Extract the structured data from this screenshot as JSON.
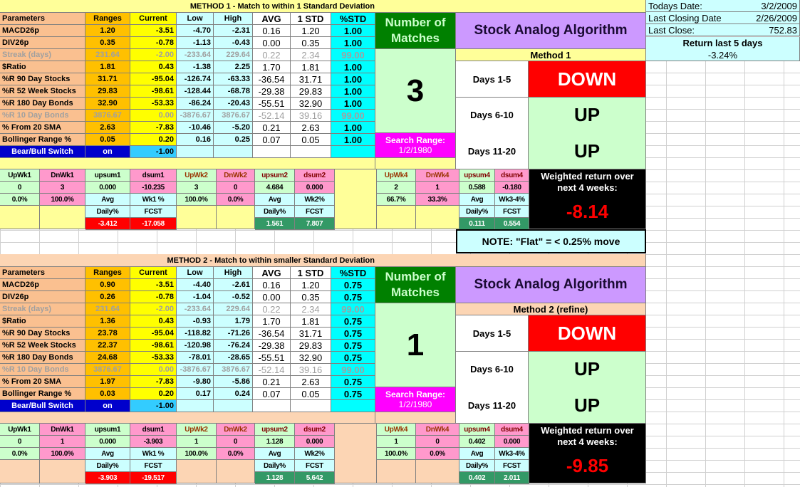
{
  "colors": {
    "params": "#fac090",
    "ranges": "#ffc000",
    "current": "#ffff00",
    "lowhigh": "#ccffff",
    "pctstd": "#00ffff",
    "matches_hdr": "#008000",
    "matches_val": "#ccffcc",
    "search": "#ff00ff",
    "algo": "#cc99ff",
    "down": "#ff0000",
    "up": "#ccffcc",
    "up_cell": "#ccffcc",
    "dn_cell": "#ff99cc",
    "fcst_neg": "#ff0000",
    "fcst_pos": "#339966",
    "switch": "#0000cc"
  },
  "info": {
    "todays_label": "Todays Date:",
    "todays_value": "3/2/2009",
    "closing_label": "Last Closing Date:",
    "closing_value": "2/26/2009",
    "close_label": "Last Close:",
    "close_value": "752.83",
    "return_label": "Return last 5 days",
    "return_value": "-3.24%"
  },
  "note": "NOTE: \"Flat\" = < 0.25% move",
  "headers": [
    "Parameters",
    "Ranges",
    "Current",
    "Low",
    "High",
    "AVG",
    "1 STD",
    "%STD"
  ],
  "methods": [
    {
      "title": "METHOD 1 - Match to within 1 Standard Deviation",
      "bg": "#ffff99",
      "rows": [
        {
          "name": "MACD26p",
          "range": "1.20",
          "current": "-3.51",
          "low": "-4.70",
          "high": "-2.31",
          "avg": "0.16",
          "std": "1.20",
          "pct": "1.00",
          "dim": false
        },
        {
          "name": "DIV26p",
          "range": "0.35",
          "current": "-0.78",
          "low": "-1.13",
          "high": "-0.43",
          "avg": "0.00",
          "std": "0.35",
          "pct": "1.00",
          "dim": false
        },
        {
          "name": "Streak (days)",
          "range": "231.64",
          "current": "-2.00",
          "low": "-233.64",
          "high": "229.64",
          "avg": "0.22",
          "std": "2.34",
          "pct": "99.00",
          "dim": true
        },
        {
          "name": "$Ratio",
          "range": "1.81",
          "current": "0.43",
          "low": "-1.38",
          "high": "2.25",
          "avg": "1.70",
          "std": "1.81",
          "pct": "1.00",
          "dim": false
        },
        {
          "name": "%R 90 Day Stocks",
          "range": "31.71",
          "current": "-95.04",
          "low": "-126.74",
          "high": "-63.33",
          "avg": "-36.54",
          "std": "31.71",
          "pct": "1.00",
          "dim": false
        },
        {
          "name": "%R 52 Week Stocks",
          "range": "29.83",
          "current": "-98.61",
          "low": "-128.44",
          "high": "-68.78",
          "avg": "-29.38",
          "std": "29.83",
          "pct": "1.00",
          "dim": false
        },
        {
          "name": "%R 180 Day Bonds",
          "range": "32.90",
          "current": "-53.33",
          "low": "-86.24",
          "high": "-20.43",
          "avg": "-55.51",
          "std": "32.90",
          "pct": "1.00",
          "dim": false
        },
        {
          "name": "%R 10 Day Bonds",
          "range": "3876.67",
          "current": "0.00",
          "low": "-3876.67",
          "high": "3876.67",
          "avg": "-52.14",
          "std": "39.16",
          "pct": "99.00",
          "dim": true
        },
        {
          "name": "% From 20 SMA",
          "range": "2.63",
          "current": "-7.83",
          "low": "-10.46",
          "high": "-5.20",
          "avg": "0.21",
          "std": "2.63",
          "pct": "1.00",
          "dim": false
        },
        {
          "name": "Bollinger Range %",
          "range": "0.05",
          "current": "0.20",
          "low": "0.16",
          "high": "0.25",
          "avg": "0.07",
          "std": "0.05",
          "pct": "1.00",
          "dim": false
        }
      ],
      "switch": {
        "label": "Bear/Bull Switch",
        "range": "on",
        "current": "-1.00"
      },
      "matches": {
        "label": "Number of Matches",
        "value": "3",
        "search_label": "Search Range:",
        "search_date": "1/2/1980"
      },
      "algo_title": "Stock Analog Algorithm",
      "method_label": "Method 1",
      "forecast": [
        {
          "days": "Days 1-5",
          "dir": "DOWN"
        },
        {
          "days": "Days 6-10",
          "dir": "UP"
        },
        {
          "days": "Days 11-20",
          "dir": "UP"
        }
      ],
      "weeks": {
        "headers": [
          "UpWk1",
          "DnWk1",
          "upsum1",
          "dsum1",
          "UpWk2",
          "DnWk2",
          "upsum2",
          "dsum2",
          "UpWk4",
          "DnWk4",
          "upsum4",
          "dsum4"
        ],
        "values": [
          "0",
          "3",
          "0.000",
          "-10.235",
          "3",
          "0",
          "4.684",
          "0.000",
          "2",
          "1",
          "0.588",
          "-0.180"
        ],
        "pcts": [
          "0.0%",
          "100.0%",
          "100.0%",
          "0.0%",
          "66.7%",
          "33.3%"
        ],
        "avg_labels": [
          [
            "Avg",
            "Daily%"
          ],
          [
            "Wk1 %",
            "FCST"
          ],
          [
            "Avg",
            "Daily%"
          ],
          [
            "Wk2%",
            "FCST"
          ],
          [
            "Avg",
            "Daily%"
          ],
          [
            "Wk3-4%",
            "FCST"
          ]
        ],
        "fcst": [
          "-3.412",
          "-17.058",
          "1.561",
          "7.807",
          "0.111",
          "0.554"
        ]
      },
      "weighted": {
        "label": "Weighted return over next 4 weeks:",
        "value": "-8.14"
      }
    },
    {
      "title": "METHOD 2 - Match to within smaller Standard Deviation",
      "bg": "#fcd5b4",
      "rows": [
        {
          "name": "MACD26p",
          "range": "0.90",
          "current": "-3.51",
          "low": "-4.40",
          "high": "-2.61",
          "avg": "0.16",
          "std": "1.20",
          "pct": "0.75",
          "dim": false
        },
        {
          "name": "DIV26p",
          "range": "0.26",
          "current": "-0.78",
          "low": "-1.04",
          "high": "-0.52",
          "avg": "0.00",
          "std": "0.35",
          "pct": "0.75",
          "dim": false
        },
        {
          "name": "Streak (days)",
          "range": "231.64",
          "current": "-2.00",
          "low": "-233.64",
          "high": "229.64",
          "avg": "0.22",
          "std": "2.34",
          "pct": "99.00",
          "dim": true
        },
        {
          "name": "$Ratio",
          "range": "1.36",
          "current": "0.43",
          "low": "-0.93",
          "high": "1.79",
          "avg": "1.70",
          "std": "1.81",
          "pct": "0.75",
          "dim": false
        },
        {
          "name": "%R 90 Day Stocks",
          "range": "23.78",
          "current": "-95.04",
          "low": "-118.82",
          "high": "-71.26",
          "avg": "-36.54",
          "std": "31.71",
          "pct": "0.75",
          "dim": false
        },
        {
          "name": "%R 52 Week Stocks",
          "range": "22.37",
          "current": "-98.61",
          "low": "-120.98",
          "high": "-76.24",
          "avg": "-29.38",
          "std": "29.83",
          "pct": "0.75",
          "dim": false
        },
        {
          "name": "%R 180 Day Bonds",
          "range": "24.68",
          "current": "-53.33",
          "low": "-78.01",
          "high": "-28.65",
          "avg": "-55.51",
          "std": "32.90",
          "pct": "0.75",
          "dim": false
        },
        {
          "name": "%R 10 Day Bonds",
          "range": "3876.67",
          "current": "0.00",
          "low": "-3876.67",
          "high": "3876.67",
          "avg": "-52.14",
          "std": "39.16",
          "pct": "99.00",
          "dim": true
        },
        {
          "name": "% From 20 SMA",
          "range": "1.97",
          "current": "-7.83",
          "low": "-9.80",
          "high": "-5.86",
          "avg": "0.21",
          "std": "2.63",
          "pct": "0.75",
          "dim": false
        },
        {
          "name": "Bollinger Range %",
          "range": "0.03",
          "current": "0.20",
          "low": "0.17",
          "high": "0.24",
          "avg": "0.07",
          "std": "0.05",
          "pct": "0.75",
          "dim": false
        }
      ],
      "switch": {
        "label": "Bear/Bull Switch",
        "range": "on",
        "current": "-1.00"
      },
      "matches": {
        "label": "Number of Matches",
        "value": "1",
        "search_label": "Search Range:",
        "search_date": "1/2/1980"
      },
      "algo_title": "Stock Analog Algorithm",
      "method_label": "Method 2 (refine)",
      "forecast": [
        {
          "days": "Days 1-5",
          "dir": "DOWN"
        },
        {
          "days": "Days 6-10",
          "dir": "UP"
        },
        {
          "days": "Days 11-20",
          "dir": "UP"
        }
      ],
      "weeks": {
        "headers": [
          "UpWk1",
          "DnWk1",
          "upsum1",
          "dsum1",
          "UpWk2",
          "DnWk2",
          "upsum2",
          "dsum2",
          "UpWk4",
          "DnWk4",
          "upsum4",
          "dsum4"
        ],
        "values": [
          "0",
          "1",
          "0.000",
          "-3.903",
          "1",
          "0",
          "1.128",
          "0.000",
          "1",
          "0",
          "0.402",
          "0.000"
        ],
        "pcts": [
          "0.0%",
          "100.0%",
          "100.0%",
          "0.0%",
          "100.0%",
          "0.0%"
        ],
        "avg_labels": [
          [
            "Avg",
            "Daily%"
          ],
          [
            "Wk1 %",
            "FCST"
          ],
          [
            "Avg",
            "Daily%"
          ],
          [
            "Wk2%",
            "FCST"
          ],
          [
            "Avg",
            "Daily%"
          ],
          [
            "Wk3-4%",
            "FCST"
          ]
        ],
        "fcst": [
          "-3.903",
          "-19.517",
          "1.128",
          "5.642",
          "0.402",
          "2.011"
        ]
      },
      "weighted": {
        "label": "Weighted return over next 4 weeks:",
        "value": "-9.85"
      }
    }
  ]
}
